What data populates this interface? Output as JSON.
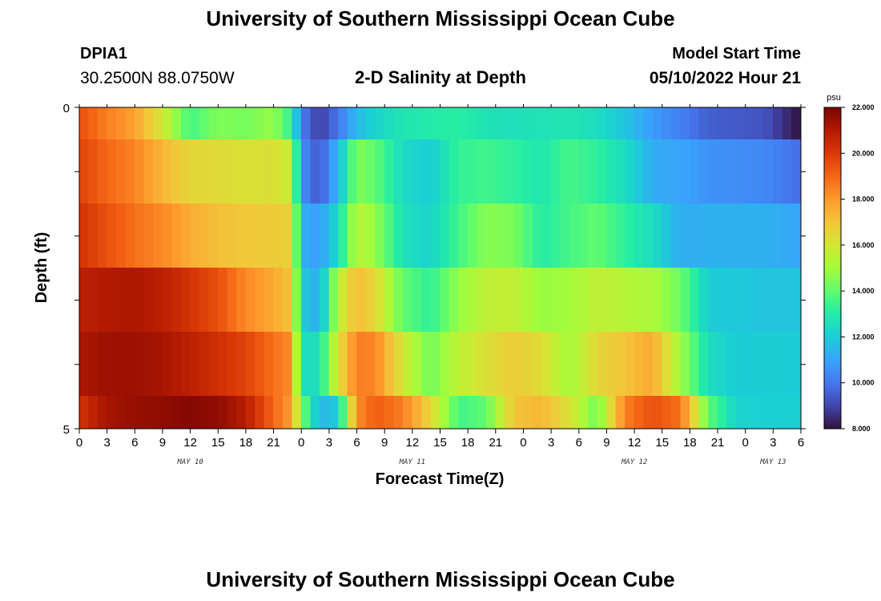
{
  "header": {
    "title": "University of Southern Mississippi Ocean Cube",
    "station": "DPIA1",
    "coords": "30.2500N  88.0750W",
    "subtitle": "2-D Salinity at Depth",
    "start_label": "Model Start Time",
    "start_value": "05/10/2022 Hour 21"
  },
  "footer": {
    "title": "University of Southern Mississippi Ocean Cube"
  },
  "chart_data": {
    "type": "heatmap",
    "title": "2-D Salinity at Depth",
    "xlabel": "Forecast Time(Z)",
    "ylabel": "Depth (ft)",
    "ylim": [
      0,
      5
    ],
    "y_tick_labels": [
      "0",
      "5"
    ],
    "x_tick_labels": [
      "0",
      "3",
      "6",
      "9",
      "12",
      "15",
      "18",
      "21",
      "0",
      "3",
      "6",
      "9",
      "12",
      "15",
      "18",
      "21",
      "0",
      "3",
      "6",
      "9",
      "12",
      "15",
      "18",
      "21",
      "0",
      "3",
      "6"
    ],
    "day_labels": [
      "MAY 10",
      "MAY 11",
      "MAY 12",
      "MAY 13"
    ],
    "x_hours": [
      0,
      1,
      2,
      3,
      4,
      5,
      6,
      7,
      8,
      9,
      10,
      11,
      12,
      13,
      14,
      15,
      16,
      17,
      18,
      19,
      20,
      21,
      22,
      23,
      24,
      25,
      26,
      27,
      28,
      29,
      30,
      31,
      32,
      33,
      34,
      35,
      36,
      37,
      38,
      39,
      40,
      41,
      42,
      43,
      44,
      45,
      46,
      47,
      48,
      49,
      50,
      51,
      52,
      53,
      54,
      55,
      56,
      57,
      58,
      59,
      60,
      61,
      62,
      63,
      64,
      65,
      66,
      67,
      68,
      69,
      70,
      71,
      72,
      73,
      74,
      75,
      76,
      77,
      78
    ],
    "depth_levels": [
      0,
      1,
      2,
      3,
      4,
      5
    ],
    "colorbar": {
      "unit": "psu",
      "min": 8.0,
      "max": 22.0,
      "tick_labels": [
        "22.000",
        "20.000",
        "18.000",
        "16.000",
        "14.000",
        "12.000",
        "10.000",
        "8.000"
      ]
    },
    "key_points": [
      [
        0,
        3
      ],
      [
        5,
        4
      ],
      [
        8,
        4
      ],
      [
        11,
        5
      ],
      [
        14,
        4
      ],
      [
        19,
        4
      ],
      [
        23,
        2
      ],
      [
        24,
        1
      ],
      [
        26,
        1
      ],
      [
        28,
        2
      ],
      [
        30,
        3
      ],
      [
        32,
        3
      ],
      [
        35,
        3
      ],
      [
        38,
        2
      ],
      [
        41,
        2
      ],
      [
        44,
        2
      ],
      [
        47,
        3
      ],
      [
        50,
        3
      ],
      [
        53,
        3
      ],
      [
        56,
        3
      ],
      [
        59,
        3
      ],
      [
        62,
        2
      ],
      [
        65,
        2
      ],
      [
        68,
        2
      ],
      [
        71,
        1
      ],
      [
        74,
        0
      ],
      [
        76,
        0
      ],
      [
        77,
        0
      ],
      [
        78,
        0
      ]
    ],
    "row_profiles": [
      [
        19.5,
        18.5,
        17.8,
        16,
        13.5,
        14.5,
        14.3,
        14.8,
        13.2,
        10.2,
        8.8,
        10,
        11.5,
        12.2,
        12.8,
        13,
        13.1,
        12.7,
        12.6,
        12.7,
        12.8,
        12.5,
        11.8,
        10.8,
        10.2,
        9.5,
        9.4,
        9.3,
        8.0
      ],
      [
        19.8,
        19,
        18.4,
        17.3,
        16.5,
        16.4,
        16.2,
        16.3,
        15.6,
        10.6,
        9.3,
        11.5,
        14.5,
        14,
        12.4,
        12,
        13.3,
        13.5,
        13.2,
        12.8,
        13.6,
        13.2,
        12.5,
        11.2,
        11,
        10.6,
        10.5,
        10.4,
        9.8
      ],
      [
        20.2,
        19.5,
        18.8,
        18.3,
        17.5,
        17.1,
        16.9,
        16.8,
        16.6,
        11.3,
        10.8,
        12.5,
        15.5,
        14.8,
        12.6,
        12.2,
        13.5,
        14.6,
        14.4,
        13,
        13.6,
        14,
        13.2,
        12.5,
        11.2,
        11.3,
        11.3,
        11.3,
        11.0
      ],
      [
        20.8,
        21,
        21.1,
        20.8,
        20.2,
        19.5,
        18.3,
        17.6,
        17,
        12,
        11.2,
        15.5,
        17.2,
        16.5,
        14,
        13.2,
        14.8,
        15.6,
        15.7,
        14.8,
        15,
        15.6,
        15.4,
        15.2,
        14.2,
        12,
        11.9,
        11.8,
        11.8
      ],
      [
        21.1,
        21.4,
        21.4,
        21.2,
        20.8,
        20.3,
        19.8,
        18.8,
        18.2,
        12.5,
        12.6,
        16.2,
        18.5,
        18.4,
        16,
        14.2,
        15.6,
        16.2,
        16.8,
        16.3,
        15,
        16.5,
        17,
        17.6,
        15,
        12.5,
        12,
        12,
        12
      ],
      [
        20.2,
        21.2,
        21.5,
        21.6,
        21.8,
        21.6,
        20.9,
        19,
        17.8,
        14.5,
        11.4,
        12,
        18.2,
        19.2,
        18.5,
        16.5,
        13.5,
        14,
        17,
        17.3,
        16.2,
        14.2,
        18.5,
        19.5,
        18.8,
        14,
        12.2,
        12.1,
        12.1
      ]
    ]
  }
}
